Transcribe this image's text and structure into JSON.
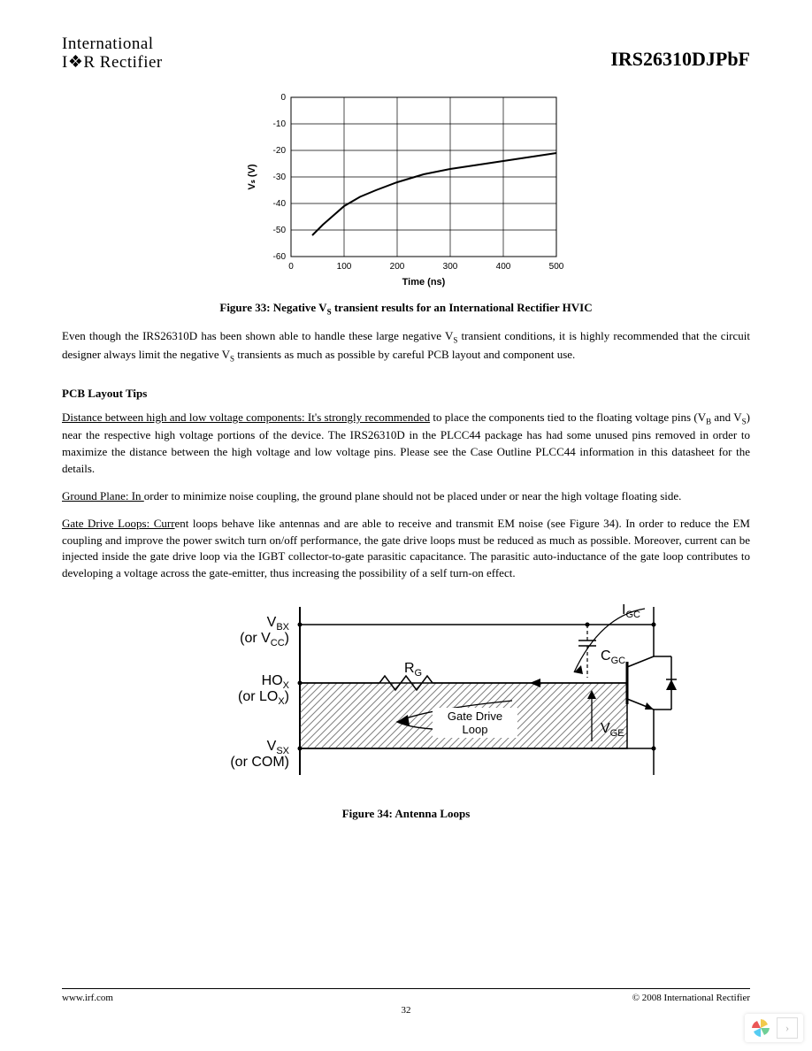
{
  "header": {
    "logo_line1": "International",
    "logo_line2": "I❖R Rectifier",
    "part_number": "IRS26310DJPbF"
  },
  "chart": {
    "type": "line",
    "title": "",
    "xlabel": "Time (ns)",
    "ylabel": "Vₛ (V)",
    "label_fontsize": 11,
    "tick_fontsize": 10,
    "xlim": [
      0,
      500
    ],
    "ylim": [
      -60,
      0
    ],
    "xtick_step": 100,
    "ytick_step": 10,
    "background_color": "#ffffff",
    "axis_color": "#000000",
    "grid_color": "#000000",
    "line_color": "#000000",
    "line_width": 2,
    "x": [
      40,
      60,
      80,
      100,
      130,
      160,
      200,
      250,
      300,
      350,
      400,
      450,
      500
    ],
    "y": [
      -52,
      -48,
      -44.5,
      -41,
      -37.5,
      -35,
      -32,
      -29,
      -27,
      -25.5,
      -24,
      -22.5,
      -21
    ]
  },
  "figure33_caption_pre": "Figure 33: Negative V",
  "figure33_caption_sub": "S",
  "figure33_caption_post": " transient results for an International Rectifier HVIC",
  "para1_a": "Even though the IRS26310D has been shown able to handle these large negative V",
  "para1_b": " transient conditions, it is highly recommended that the circuit designer always limit the negative V",
  "para1_c": " transients as much as possible by careful PCB layout and component use.",
  "section_head": "PCB Layout Tips",
  "tip1_u": "Distance between high and low voltage components:  It's strongly recommended",
  "tip1_rest_a": " to place the components tied to the floating voltage pins (V",
  "tip1_sub1": "B",
  "tip1_mid": " and V",
  "tip1_sub2": "S",
  "tip1_rest_b": ") near the respective high voltage portions of the device.  The IRS26310D in the PLCC44 package has had some unused pins removed in order to maximize the distance between the high voltage and low voltage pins.   Please see the Case Outline PLCC44 information in this datasheet for the details.",
  "tip2_u": "Ground Plane: In ",
  "tip2_rest": "order to minimize noise coupling, the ground plane should not be placed under or near the high voltage floating side.",
  "tip3_u": "Gate Drive Loops: Curr",
  "tip3_rest": "ent loops behave like antennas and are able to receive and transmit EM noise (see Figure 34). In order to reduce the EM coupling and improve the power switch turn on/off performance, the gate drive loops must be reduced as much as possible. Moreover, current can be injected inside the gate drive loop via the IGBT collector-to-gate parasitic capacitance. The parasitic auto-inductance of the gate loop contributes to developing a voltage across the gate-emitter, thus increasing the possibility of a self turn-on effect.",
  "diagram": {
    "type": "circuit-block",
    "labels": {
      "vbx": "V",
      "vbx_sub": "BX",
      "or_vcc": "(or V",
      "vcc_sub": "CC",
      "close": ")",
      "hox": "HO",
      "hox_sub": "X",
      "or_lox": "(or LO",
      "lox_sub": "X",
      "vsx": "V",
      "vsx_sub": "SX",
      "or_com": "(or COM)",
      "rg": "R",
      "rg_sub": "G",
      "igc": "I",
      "igc_sub": "GC",
      "cgc": "C",
      "cgc_sub": "GC",
      "vge": "V",
      "vge_sub": "GE",
      "loop": "Gate Drive",
      "loop2": "Loop"
    },
    "colors": {
      "stroke": "#000000",
      "hatch": "#808080",
      "fill": "#ffffff"
    },
    "line_width": 1.5,
    "font_family": "Arial, Helvetica, sans-serif",
    "font_size": 16
  },
  "figure34_caption": "Figure 34: Antenna Loops",
  "footer": {
    "url": "www.irf.com",
    "copyright": "© 2008 International Rectifier",
    "page": "32"
  }
}
